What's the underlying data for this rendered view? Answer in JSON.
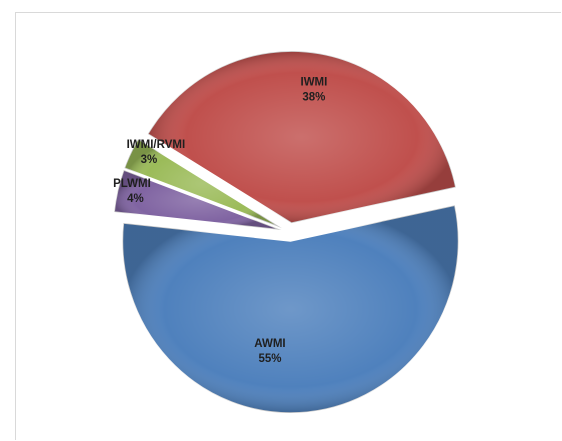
{
  "chart_data": {
    "type": "pie",
    "title": "",
    "slices": [
      {
        "label": "IWMI",
        "value": 38,
        "display": "38%",
        "color": "#c0504d"
      },
      {
        "label": "IWMI/RVMI",
        "value": 3,
        "display": "3%",
        "color": "#9bbb59"
      },
      {
        "label": "PLWMI",
        "value": 4,
        "display": "4%",
        "color": "#8064a2"
      },
      {
        "label": "AWMI",
        "value": 55,
        "display": "55%",
        "color": "#4f81bd"
      }
    ],
    "legend": "none",
    "exploded": true
  }
}
